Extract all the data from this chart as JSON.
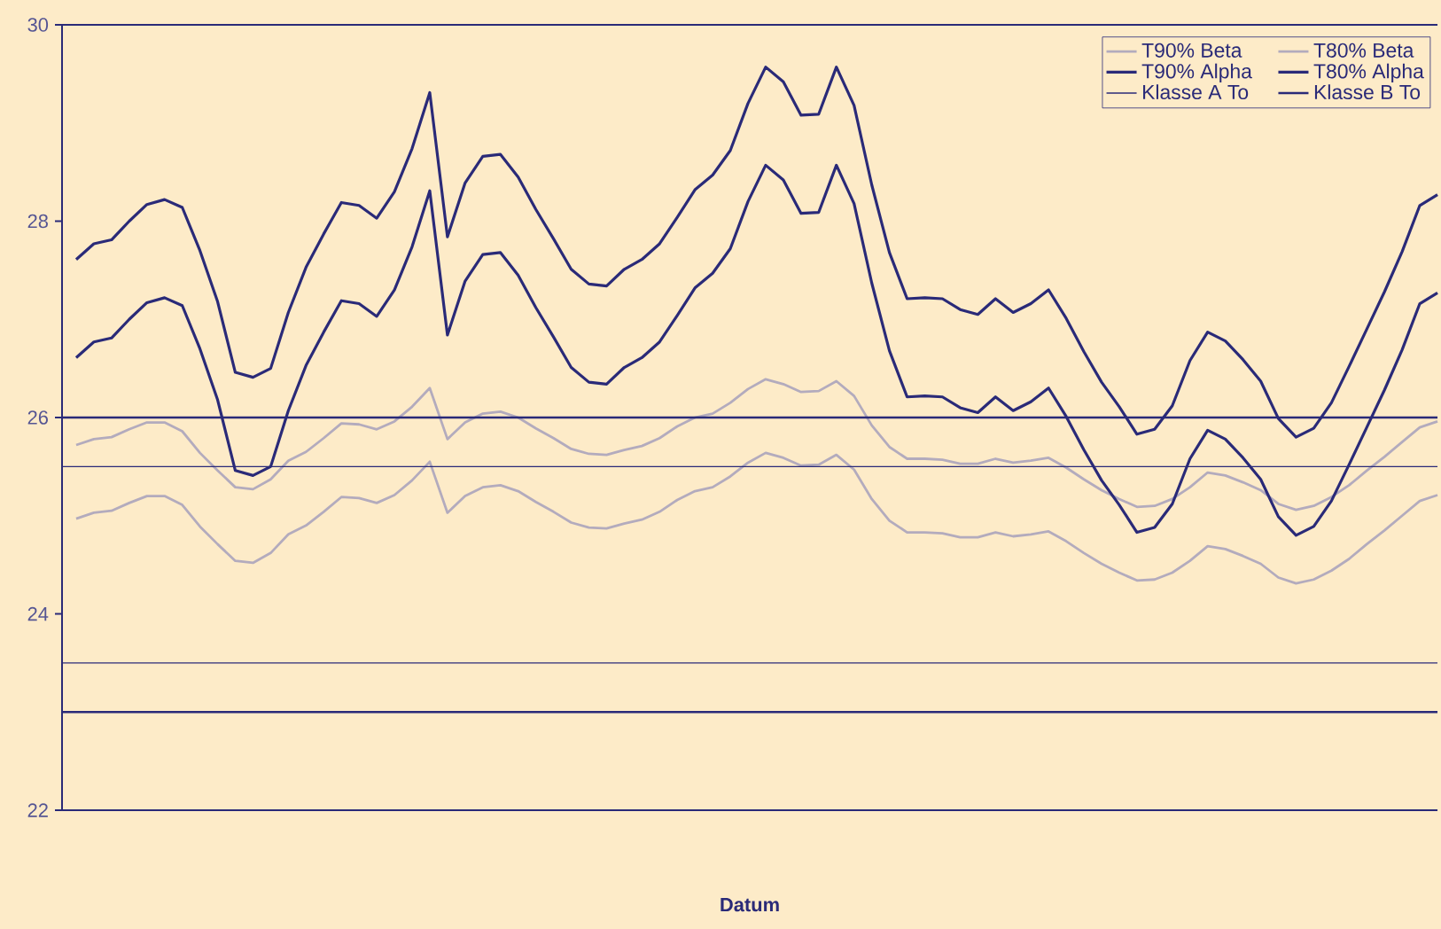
{
  "chart_data": {
    "type": "line",
    "xlabel": "Datum",
    "legend": "top right",
    "categories": [
      null,
      null,
      null,
      null,
      null,
      null,
      null,
      null,
      null,
      null,
      null,
      null,
      null,
      null,
      null,
      null,
      null,
      null,
      null,
      null,
      null,
      null,
      null,
      null,
      null,
      null,
      null,
      null,
      null,
      null,
      null,
      null,
      null,
      null,
      null,
      null,
      null,
      null,
      null,
      null,
      null,
      null,
      null,
      null,
      null,
      null,
      null,
      null,
      null,
      null,
      null,
      null,
      null,
      null,
      null,
      null,
      null,
      null,
      null,
      null,
      null,
      null,
      null,
      null,
      null,
      null,
      null,
      null,
      null,
      null,
      null,
      null,
      null,
      null,
      null,
      null,
      null,
      null
    ],
    "ylim": [
      22,
      30
    ],
    "yticks": [
      22,
      24,
      26,
      28,
      30
    ],
    "series": [
      {
        "name": "T90% Beta",
        "color": "#b3abbd",
        "values": [
          25.72,
          25.78,
          25.8,
          25.88,
          25.95,
          25.95,
          25.86,
          25.64,
          25.46,
          25.29,
          25.27,
          25.37,
          25.56,
          25.65,
          25.79,
          25.94,
          25.93,
          25.88,
          25.96,
          26.11,
          26.3,
          25.78,
          25.95,
          26.04,
          26.06,
          26.0,
          25.89,
          25.79,
          25.68,
          25.63,
          25.62,
          25.67,
          25.71,
          25.79,
          25.91,
          26.0,
          26.04,
          26.15,
          26.29,
          26.39,
          26.34,
          26.26,
          26.27,
          26.37,
          26.22,
          25.92,
          25.7,
          25.58,
          25.58,
          25.57,
          25.53,
          25.53,
          25.58,
          25.54,
          25.56,
          25.59,
          25.49,
          25.37,
          25.26,
          25.17,
          25.09,
          25.1,
          25.17,
          25.29,
          25.44,
          25.41,
          25.34,
          25.26,
          25.12,
          25.06,
          25.1,
          25.19,
          25.31,
          25.46,
          25.6,
          25.75,
          25.9,
          25.96
        ]
      },
      {
        "name": "T80% Beta",
        "color": "#b3abbd",
        "values": [
          24.97,
          25.03,
          25.05,
          25.13,
          25.2,
          25.2,
          25.11,
          24.89,
          24.71,
          24.54,
          24.52,
          24.62,
          24.81,
          24.9,
          25.04,
          25.19,
          25.18,
          25.13,
          25.21,
          25.36,
          25.55,
          25.03,
          25.2,
          25.29,
          25.31,
          25.25,
          25.14,
          25.04,
          24.93,
          24.88,
          24.87,
          24.92,
          24.96,
          25.04,
          25.16,
          25.25,
          25.29,
          25.4,
          25.54,
          25.64,
          25.59,
          25.51,
          25.52,
          25.62,
          25.47,
          25.17,
          24.95,
          24.83,
          24.83,
          24.82,
          24.78,
          24.78,
          24.83,
          24.79,
          24.81,
          24.84,
          24.74,
          24.62,
          24.51,
          24.42,
          24.34,
          24.35,
          24.42,
          24.54,
          24.69,
          24.66,
          24.59,
          24.51,
          24.37,
          24.31,
          24.35,
          24.44,
          24.56,
          24.71,
          24.85,
          25.0,
          25.15,
          25.21
        ]
      },
      {
        "name": "T90% Alpha",
        "color": "#2a2a78",
        "values": [
          27.61,
          27.77,
          27.81,
          28.0,
          28.17,
          28.22,
          28.14,
          27.7,
          27.18,
          26.46,
          26.41,
          26.5,
          27.07,
          27.53,
          27.87,
          28.19,
          28.16,
          28.03,
          28.3,
          28.74,
          29.31,
          27.84,
          28.39,
          28.66,
          28.68,
          28.45,
          28.12,
          27.82,
          27.51,
          27.36,
          27.34,
          27.51,
          27.61,
          27.77,
          28.04,
          28.32,
          28.47,
          28.72,
          29.2,
          29.57,
          29.42,
          29.08,
          29.09,
          29.57,
          29.18,
          28.37,
          27.68,
          27.21,
          27.22,
          27.21,
          27.1,
          27.05,
          27.21,
          27.07,
          27.16,
          27.3,
          27.01,
          26.67,
          26.36,
          26.11,
          25.83,
          25.88,
          26.12,
          26.58,
          26.87,
          26.78,
          26.59,
          26.37,
          25.99,
          25.8,
          25.89,
          26.15,
          26.52,
          26.9,
          27.28,
          27.69,
          28.16,
          28.27
        ]
      },
      {
        "name": "T80% Alpha",
        "color": "#2a2a78",
        "values": [
          26.61,
          26.77,
          26.81,
          27.0,
          27.17,
          27.22,
          27.14,
          26.7,
          26.18,
          25.46,
          25.41,
          25.5,
          26.07,
          26.53,
          26.87,
          27.19,
          27.16,
          27.03,
          27.3,
          27.74,
          28.31,
          26.84,
          27.39,
          27.66,
          27.68,
          27.45,
          27.12,
          26.82,
          26.51,
          26.36,
          26.34,
          26.51,
          26.61,
          26.77,
          27.04,
          27.32,
          27.47,
          27.72,
          28.2,
          28.57,
          28.42,
          28.08,
          28.09,
          28.57,
          28.18,
          27.37,
          26.68,
          26.21,
          26.22,
          26.21,
          26.1,
          26.05,
          26.21,
          26.07,
          26.16,
          26.3,
          26.01,
          25.67,
          25.36,
          25.11,
          24.83,
          24.88,
          25.12,
          25.58,
          25.87,
          25.78,
          25.59,
          25.37,
          24.99,
          24.8,
          24.89,
          25.15,
          25.52,
          25.9,
          26.28,
          26.69,
          27.16,
          27.27
        ]
      }
    ],
    "ref_lines": [
      {
        "axis": "y",
        "value": 25.5,
        "label": "Klasse A To",
        "color": "#2a2a78"
      },
      {
        "axis": "y",
        "value": 26,
        "label": "Klasse B To",
        "color": "#2a2a78"
      },
      {
        "axis": "y",
        "value": 23.5,
        "color": "#2a2a78"
      },
      {
        "axis": "y",
        "value": 23,
        "color": "#2a2a78"
      }
    ]
  }
}
